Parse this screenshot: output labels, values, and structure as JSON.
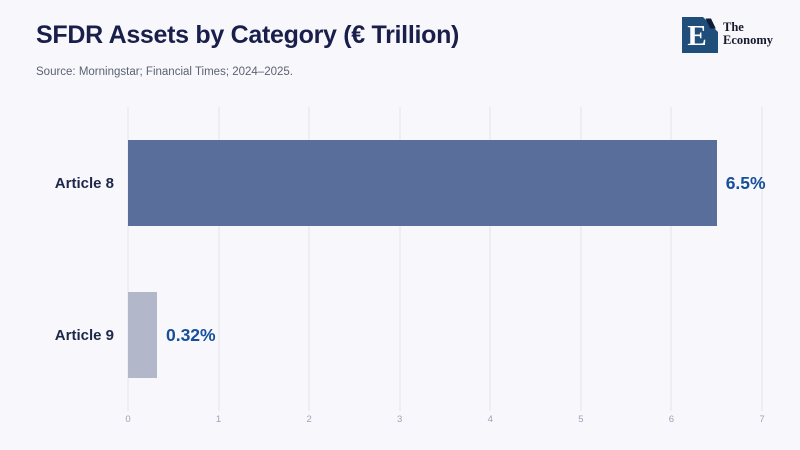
{
  "header": {
    "title": "SFDR Assets by Category (€ Trillion)",
    "source": "Source: Morningstar; Financial Times; 2024–2025."
  },
  "logo": {
    "monogram": "E",
    "name_line1": "The",
    "name_line2": "Economy",
    "square_color": "#1f4e7a",
    "text_color": "#16192b"
  },
  "chart_data": {
    "type": "bar",
    "orientation": "horizontal",
    "title": "SFDR Assets by Category (€ Trillion)",
    "xlabel": "",
    "ylabel": "",
    "categories": [
      "Article 8",
      "Article 9"
    ],
    "values": [
      6.5,
      0.32
    ],
    "value_labels": [
      "6.5%",
      "0.32%"
    ],
    "bar_colors": [
      "#5a6e9c",
      "#b2b7c9"
    ],
    "value_label_color": "#164f9c",
    "xlim": [
      0,
      7
    ],
    "xticks": [
      0,
      1,
      2,
      3,
      4,
      5,
      6,
      7
    ],
    "grid": "vertical",
    "legend": "none"
  },
  "colors": {
    "background": "#f8f8fc",
    "title_text": "#191f4a",
    "source_text": "#5b6273",
    "gridline": "#e2e3ea",
    "tick_label": "#9aa3b8",
    "category_label": "#1d2749"
  }
}
